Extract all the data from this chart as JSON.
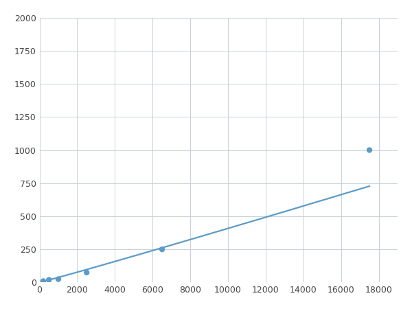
{
  "x": [
    200,
    500,
    1000,
    2500,
    6500,
    17500
  ],
  "y": [
    10,
    20,
    25,
    75,
    250,
    1000
  ],
  "line_color": "#5b9bc8",
  "marker_color": "#5b9bc8",
  "marker_size": 6,
  "line_width": 1.6,
  "xlim": [
    0,
    19000
  ],
  "ylim": [
    0,
    2000
  ],
  "xticks": [
    0,
    2000,
    4000,
    6000,
    8000,
    10000,
    12000,
    14000,
    16000,
    18000
  ],
  "yticks": [
    0,
    250,
    500,
    750,
    1000,
    1250,
    1500,
    1750,
    2000
  ],
  "background_color": "#ffffff",
  "grid_color": "#c8d0d8",
  "tick_fontsize": 9
}
